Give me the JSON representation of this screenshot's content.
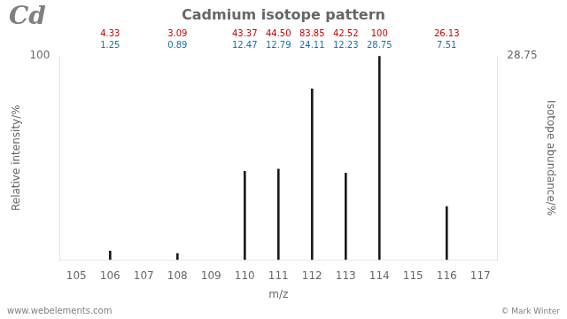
{
  "chart_data": {
    "type": "bar",
    "title": "Cadmium isotope pattern",
    "x_label": "m/z",
    "y_label": "Relative intensity/%",
    "y2_label": "Isotope abundance/%",
    "x": [
      106,
      108,
      110,
      111,
      112,
      113,
      114,
      116
    ],
    "values": [
      4.33,
      3.09,
      43.37,
      44.5,
      83.85,
      42.52,
      100.0,
      26.13
    ],
    "color": "#1a1a1a",
    "xlim": [
      104.5,
      117.5
    ],
    "xticks": [
      105,
      106,
      107,
      108,
      109,
      110,
      111,
      112,
      113,
      114,
      115,
      116,
      117
    ],
    "ylim": [
      0,
      100
    ],
    "yticks": [
      100
    ],
    "y2lim": [
      0,
      28.75
    ],
    "y2ticks": [
      28.75
    ],
    "grid": false,
    "annotations": [
      {
        "x": 106,
        "text": "4.33",
        "color": "#cc0000"
      },
      {
        "x": 108,
        "text": "3.09",
        "color": "#cc0000"
      },
      {
        "x": 110,
        "text": "43.37",
        "color": "#cc0000"
      },
      {
        "x": 111,
        "text": "44.50",
        "color": "#cc0000"
      },
      {
        "x": 112,
        "text": "83.85",
        "color": "#cc0000"
      },
      {
        "x": 113,
        "text": "42.52",
        "color": "#cc0000"
      },
      {
        "x": 114,
        "text": "100",
        "color": "#cc0000"
      },
      {
        "x": 116,
        "text": "26.13",
        "color": "#cc0000"
      },
      {
        "x": 106,
        "text": "1.25",
        "color": "#1a6faf"
      },
      {
        "x": 108,
        "text": "0.89",
        "color": "#1a6faf"
      },
      {
        "x": 110,
        "text": "12.47",
        "color": "#1a6faf"
      },
      {
        "x": 111,
        "text": "12.79",
        "color": "#1a6faf"
      },
      {
        "x": 112,
        "text": "24.11",
        "color": "#1a6faf"
      },
      {
        "x": 113,
        "text": "12.23",
        "color": "#1a6faf"
      },
      {
        "x": 114,
        "text": "28.75",
        "color": "#1a6faf"
      },
      {
        "x": 116,
        "text": "7.51",
        "color": "#1a6faf"
      },
      {
        "text": "Cd"
      },
      {
        "text": "www.webelements.com"
      },
      {
        "text": "© Mark Winter"
      }
    ]
  }
}
